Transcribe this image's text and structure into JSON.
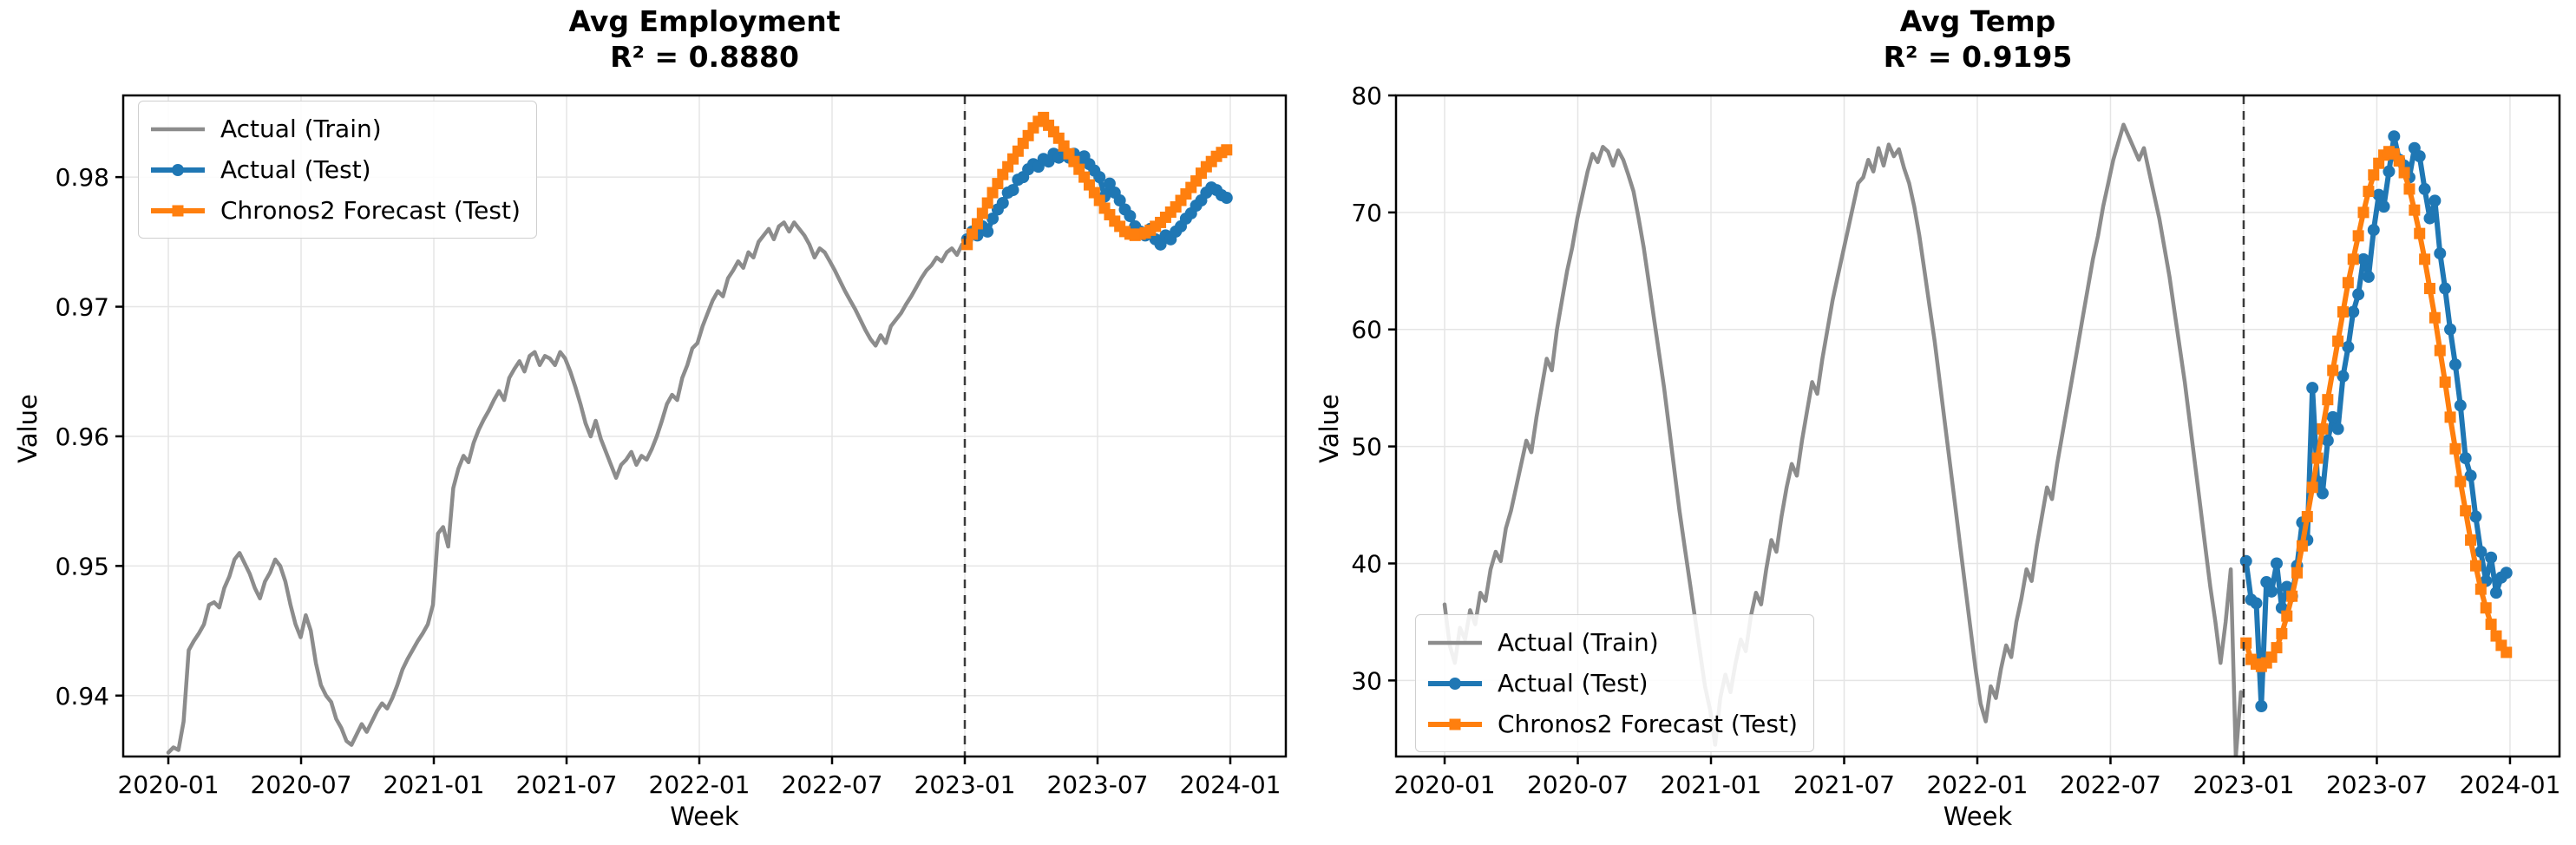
{
  "figure": {
    "background": "#ffffff"
  },
  "shared": {
    "x_tick_labels": [
      "2020-01",
      "2020-07",
      "2021-01",
      "2021-07",
      "2022-01",
      "2022-07",
      "2023-01",
      "2023-07",
      "2024-01"
    ],
    "x_tick_months": [
      0,
      6,
      12,
      18,
      24,
      30,
      36,
      42,
      48
    ],
    "xlabel": "Week",
    "ylabel": "Value",
    "vline_month": 36,
    "colors": {
      "train": "#8c8c8c",
      "test": "#1f77b4",
      "forecast": "#ff7f0e",
      "vline": "#3a3a3a",
      "grid": "#e5e5e5",
      "spine": "#000000"
    }
  },
  "chart_data": [
    {
      "type": "line",
      "title": "Avg Employment",
      "subtitle": "R² = 0.8880",
      "xlabel": "Week",
      "ylabel": "Value",
      "legend_loc": "upper left",
      "grid": true,
      "xlim": [
        -2.04,
        50.51
      ],
      "ylim": [
        0.9353,
        0.9863
      ],
      "y_ticks": [
        0.94,
        0.95,
        0.96,
        0.97,
        0.98
      ],
      "y_tick_labels": [
        "0.94",
        "0.95",
        "0.96",
        "0.97",
        "0.98"
      ],
      "series": [
        {
          "name": "Actual (Train)",
          "color": "#8c8c8c",
          "marker": "none",
          "start_week": 0,
          "values": [
            0.9356,
            0.936,
            0.9358,
            0.938,
            0.9435,
            0.9442,
            0.9448,
            0.9455,
            0.947,
            0.9472,
            0.9468,
            0.9483,
            0.9492,
            0.9505,
            0.951,
            0.9502,
            0.9494,
            0.9483,
            0.9475,
            0.9488,
            0.9495,
            0.9505,
            0.95,
            0.9488,
            0.947,
            0.9455,
            0.9445,
            0.9462,
            0.945,
            0.9425,
            0.9408,
            0.94,
            0.9395,
            0.9382,
            0.9375,
            0.9365,
            0.9362,
            0.937,
            0.9378,
            0.9372,
            0.938,
            0.9388,
            0.9394,
            0.939,
            0.9398,
            0.9408,
            0.942,
            0.9428,
            0.9435,
            0.9442,
            0.9448,
            0.9455,
            0.947,
            0.9525,
            0.953,
            0.9515,
            0.956,
            0.9575,
            0.9585,
            0.958,
            0.9595,
            0.9605,
            0.9613,
            0.962,
            0.9628,
            0.9635,
            0.9628,
            0.9645,
            0.9652,
            0.9658,
            0.965,
            0.9662,
            0.9665,
            0.9655,
            0.9662,
            0.966,
            0.9655,
            0.9665,
            0.966,
            0.965,
            0.9638,
            0.9625,
            0.961,
            0.96,
            0.9612,
            0.9598,
            0.9588,
            0.9578,
            0.9568,
            0.9578,
            0.9582,
            0.9588,
            0.9578,
            0.9585,
            0.9582,
            0.959,
            0.96,
            0.9612,
            0.9625,
            0.9632,
            0.9628,
            0.9645,
            0.9655,
            0.9668,
            0.9672,
            0.9685,
            0.9695,
            0.9705,
            0.9712,
            0.9708,
            0.9722,
            0.9728,
            0.9735,
            0.973,
            0.9742,
            0.9738,
            0.975,
            0.9755,
            0.976,
            0.9752,
            0.9762,
            0.9765,
            0.9758,
            0.9765,
            0.976,
            0.9755,
            0.9748,
            0.9738,
            0.9745,
            0.9742,
            0.9735,
            0.9728,
            0.972,
            0.9712,
            0.9705,
            0.9698,
            0.969,
            0.9682,
            0.9675,
            0.967,
            0.9678,
            0.9672,
            0.9685,
            0.969,
            0.9695,
            0.9702,
            0.9708,
            0.9715,
            0.9722,
            0.9728,
            0.9732,
            0.9738,
            0.9735,
            0.9742,
            0.9745,
            0.974,
            0.9748
          ]
        },
        {
          "name": "Actual (Test)",
          "color": "#1f77b4",
          "marker": "circle",
          "start_week": 157,
          "values": [
            0.9752,
            0.9758,
            0.9755,
            0.9762,
            0.9758,
            0.9768,
            0.9775,
            0.978,
            0.9788,
            0.979,
            0.9798,
            0.98,
            0.9806,
            0.981,
            0.9808,
            0.9814,
            0.9812,
            0.9818,
            0.9815,
            0.982,
            0.9815,
            0.9818,
            0.9812,
            0.9816,
            0.981,
            0.9805,
            0.98,
            0.9785,
            0.9795,
            0.9788,
            0.9782,
            0.9775,
            0.977,
            0.9762,
            0.9758,
            0.9755,
            0.976,
            0.9752,
            0.9748,
            0.9755,
            0.9752,
            0.9758,
            0.9762,
            0.9768,
            0.9772,
            0.9778,
            0.9782,
            0.9788,
            0.9792,
            0.979,
            0.9786,
            0.9784
          ]
        },
        {
          "name": "Chronos2 Forecast (Test)",
          "color": "#ff7f0e",
          "marker": "square",
          "start_week": 157,
          "values": [
            0.9748,
            0.9756,
            0.9764,
            0.9772,
            0.978,
            0.9788,
            0.9795,
            0.9802,
            0.9808,
            0.9814,
            0.982,
            0.9826,
            0.9832,
            0.9838,
            0.9843,
            0.9846,
            0.984,
            0.9835,
            0.983,
            0.9824,
            0.9818,
            0.9812,
            0.9806,
            0.98,
            0.9794,
            0.9788,
            0.9782,
            0.9776,
            0.9771,
            0.9766,
            0.9762,
            0.9758,
            0.9756,
            0.9755,
            0.9756,
            0.9757,
            0.9759,
            0.9762,
            0.9765,
            0.9769,
            0.9773,
            0.9777,
            0.9782,
            0.9787,
            0.9792,
            0.9797,
            0.9803,
            0.9808,
            0.9812,
            0.9816,
            0.9819,
            0.9821
          ]
        }
      ]
    },
    {
      "type": "line",
      "title": "Avg Temp",
      "subtitle": "R² = 0.9195",
      "xlabel": "Week",
      "ylabel": "Value",
      "legend_loc": "lower left",
      "grid": true,
      "xlim": [
        -2.19,
        50.23
      ],
      "ylim": [
        23.5,
        80
      ],
      "y_ticks": [
        30,
        40,
        50,
        60,
        70,
        80
      ],
      "y_tick_labels": [
        "30",
        "40",
        "50",
        "60",
        "70",
        "80"
      ],
      "series": [
        {
          "name": "Actual (Train)",
          "color": "#8c8c8c",
          "marker": "none",
          "start_week": 0,
          "values": [
            36.5,
            33.0,
            31.5,
            34.5,
            33.5,
            36.0,
            34.8,
            37.5,
            36.8,
            39.5,
            41.0,
            40.2,
            43.0,
            44.5,
            46.5,
            48.5,
            50.5,
            49.5,
            52.5,
            55.0,
            57.5,
            56.5,
            60.0,
            62.5,
            65.0,
            67.0,
            69.5,
            71.5,
            73.5,
            75.0,
            74.3,
            75.6,
            75.2,
            74.0,
            75.3,
            74.5,
            73.2,
            71.8,
            69.5,
            67.0,
            64.0,
            61.0,
            58.0,
            55.0,
            51.5,
            48.0,
            44.5,
            41.5,
            38.5,
            35.5,
            32.5,
            29.5,
            27.5,
            24.5,
            28.5,
            30.5,
            29.0,
            31.5,
            33.5,
            32.5,
            35.5,
            37.5,
            36.5,
            39.5,
            42.0,
            41.0,
            44.0,
            46.5,
            48.5,
            47.5,
            50.5,
            53.0,
            55.5,
            54.5,
            57.5,
            60.0,
            62.5,
            64.5,
            66.5,
            68.5,
            70.5,
            72.5,
            73.0,
            74.5,
            73.5,
            75.5,
            74.0,
            75.8,
            74.8,
            75.4,
            73.8,
            72.5,
            70.5,
            68.0,
            65.0,
            62.0,
            59.0,
            55.5,
            52.0,
            48.5,
            45.0,
            41.5,
            38.0,
            34.5,
            31.0,
            28.0,
            26.5,
            29.5,
            28.5,
            31.0,
            33.0,
            32.0,
            35.0,
            37.0,
            39.5,
            38.5,
            41.5,
            44.0,
            46.5,
            45.5,
            48.5,
            51.0,
            53.5,
            56.0,
            58.5,
            61.0,
            63.5,
            66.0,
            68.0,
            70.5,
            72.5,
            74.5,
            76.0,
            77.5,
            76.5,
            75.5,
            74.5,
            75.5,
            73.5,
            71.5,
            69.5,
            67.0,
            64.5,
            61.5,
            58.5,
            55.5,
            52.0,
            48.5,
            45.0,
            41.5,
            38.0,
            35.0,
            31.5,
            35.0,
            39.5,
            23.5,
            29.0
          ]
        },
        {
          "name": "Actual (Test)",
          "color": "#1f77b4",
          "marker": "circle",
          "start_week": 157,
          "values": [
            40.2,
            36.9,
            36.6,
            27.8,
            38.4,
            37.6,
            40.0,
            36.2,
            38.0,
            37.2,
            39.8,
            43.5,
            42.0,
            55.0,
            47.0,
            46.0,
            50.5,
            52.5,
            51.5,
            56.0,
            58.5,
            61.5,
            63.0,
            66.0,
            64.5,
            68.5,
            71.5,
            70.5,
            73.5,
            76.5,
            74.5,
            74.0,
            73.0,
            75.5,
            74.8,
            72.0,
            69.5,
            71.0,
            66.5,
            63.5,
            60.0,
            57.0,
            53.5,
            49.0,
            47.5,
            44.0,
            41.0,
            38.5,
            40.5,
            37.5,
            38.8,
            39.2
          ]
        },
        {
          "name": "Chronos2 Forecast (Test)",
          "color": "#ff7f0e",
          "marker": "square",
          "start_week": 157,
          "values": [
            33.2,
            31.8,
            31.4,
            31.2,
            31.5,
            32.0,
            32.8,
            34.0,
            35.5,
            37.2,
            39.2,
            41.5,
            44.0,
            46.5,
            49.0,
            51.5,
            54.0,
            56.5,
            59.0,
            61.5,
            64.0,
            66.0,
            68.0,
            70.0,
            71.8,
            73.2,
            74.2,
            74.9,
            75.2,
            75.0,
            74.4,
            73.4,
            72.0,
            70.2,
            68.2,
            66.0,
            63.5,
            61.0,
            58.2,
            55.5,
            52.5,
            49.8,
            47.0,
            44.5,
            42.0,
            39.8,
            37.8,
            36.2,
            34.8,
            33.8,
            33.0,
            32.4
          ]
        }
      ]
    }
  ]
}
